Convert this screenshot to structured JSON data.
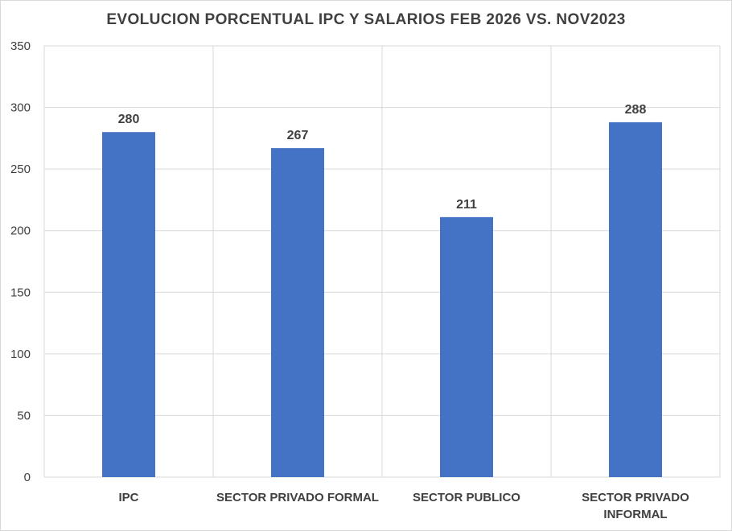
{
  "chart_data": {
    "type": "bar",
    "title": "EVOLUCION PORCENTUAL  IPC Y SALARIOS  FEB 2026  VS. NOV2023",
    "xlabel": "",
    "ylabel": "",
    "categories": [
      [
        "IPC"
      ],
      [
        "SECTOR PRIVADO FORMAL"
      ],
      [
        "SECTOR PUBLICO"
      ],
      [
        "SECTOR PRIVADO",
        "INFORMAL"
      ]
    ],
    "values": [
      280,
      267,
      211,
      288
    ],
    "data_labels": [
      "280",
      "267",
      "211",
      "288"
    ],
    "ylim": [
      0,
      350
    ],
    "yticks": [
      "0",
      "50",
      "100",
      "150",
      "200",
      "250",
      "300",
      "350"
    ],
    "grid": true,
    "legend": "none",
    "colors": {
      "bar": "#4472C4",
      "grid": "#D9D9D9",
      "text": "#404040"
    }
  }
}
